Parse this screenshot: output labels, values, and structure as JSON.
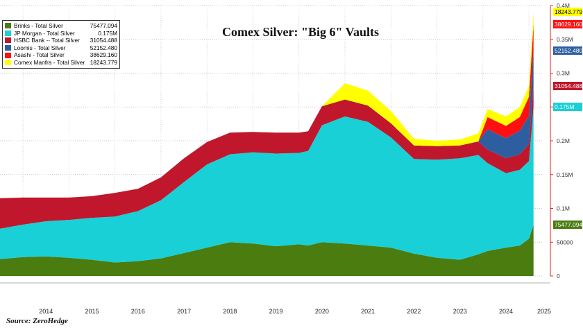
{
  "chart_data": {
    "type": "area",
    "stacked": true,
    "title": "Comex Silver: \"Big 6\" Vaults",
    "source": "Source: ZeroHedge",
    "xlim": [
      2013.5,
      2025.3
    ],
    "ylim": [
      0,
      400000
    ],
    "x_ticks": [
      2014,
      2015,
      2016,
      2017,
      2018,
      2019,
      2020,
      2021,
      2022,
      2023,
      2024,
      2025
    ],
    "y_ticks": [
      {
        "value": 0,
        "label": "0"
      },
      {
        "value": 50000,
        "label": "50000"
      },
      {
        "value": 100000,
        "label": "0.1M"
      },
      {
        "value": 150000,
        "label": "0.15M"
      },
      {
        "value": 200000,
        "label": "0.2M"
      },
      {
        "value": 250000,
        "label": "0.25M"
      },
      {
        "value": 300000,
        "label": "0.3M"
      },
      {
        "value": 350000,
        "label": "0.35M"
      },
      {
        "value": 400000,
        "label": "0.4M"
      }
    ],
    "x": [
      2013.5,
      2014.0,
      2014.5,
      2015.0,
      2015.5,
      2016.0,
      2016.5,
      2017.0,
      2017.5,
      2018.0,
      2018.5,
      2019.0,
      2019.5,
      2020.0,
      2020.2,
      2020.5,
      2021.0,
      2021.5,
      2022.0,
      2022.5,
      2023.0,
      2023.5,
      2023.9,
      2024.1,
      2024.5,
      2024.8,
      2025.0,
      2025.1
    ],
    "series": [
      {
        "name": "Brinks - Total Silver",
        "legend_value": "75477.094",
        "label": "75477.094",
        "color": "#4a7c10",
        "values": [
          25000,
          28000,
          29000,
          27000,
          24000,
          20000,
          22000,
          26000,
          34000,
          42000,
          50000,
          48000,
          44000,
          47000,
          45000,
          50000,
          48000,
          45000,
          42000,
          33000,
          27000,
          24000,
          32000,
          37000,
          42000,
          45000,
          55000,
          75477
        ]
      },
      {
        "name": "JP Morgan - Total Silver",
        "legend_value": "0.175M",
        "label": "0.175M",
        "color": "#19d0d6",
        "values": [
          45000,
          48000,
          52000,
          56000,
          62000,
          68000,
          74000,
          86000,
          105000,
          123000,
          130000,
          135000,
          137000,
          135000,
          140000,
          173000,
          188000,
          183000,
          163000,
          140000,
          145000,
          150000,
          147000,
          130000,
          110000,
          112000,
          115000,
          175000
        ]
      },
      {
        "name": "HSBC Bank -- Total Silver",
        "legend_value": "31054.488",
        "label": "31054.488",
        "color": "#c0172c",
        "values": [
          45000,
          40000,
          35000,
          33000,
          32000,
          35000,
          33000,
          34000,
          35000,
          33000,
          32000,
          30000,
          31000,
          30000,
          29000,
          28000,
          25000,
          24000,
          21000,
          20000,
          20000,
          19000,
          20000,
          20000,
          22000,
          23000,
          25000,
          31054
        ]
      },
      {
        "name": "Loomis - Total Silver",
        "legend_value": "52152.480",
        "label": "52152.480",
        "color": "#2d5fa0",
        "values": [
          0,
          0,
          0,
          0,
          0,
          0,
          0,
          0,
          0,
          0,
          0,
          0,
          0,
          0,
          0,
          0,
          0,
          0,
          0,
          0,
          0,
          0,
          0,
          30000,
          30000,
          35000,
          42000,
          52152
        ]
      },
      {
        "name": "Asashi - Total Silver",
        "legend_value": "38629.160",
        "label": "38629.160",
        "color": "#ff1010",
        "values": [
          0,
          0,
          0,
          0,
          0,
          0,
          0,
          0,
          0,
          0,
          0,
          0,
          0,
          0,
          0,
          0,
          0,
          0,
          0,
          0,
          0,
          0,
          0,
          18000,
          18000,
          20000,
          28000,
          38629
        ]
      },
      {
        "name": "Comex Manfra - Total Silver",
        "legend_value": "18243.779",
        "label": "18243.779",
        "color": "#ffff00",
        "values": [
          0,
          0,
          0,
          0,
          0,
          0,
          0,
          0,
          0,
          0,
          0,
          0,
          0,
          0,
          0,
          0,
          24000,
          22000,
          18000,
          10000,
          8000,
          9000,
          12000,
          12000,
          14000,
          15000,
          16000,
          18244
        ]
      }
    ]
  }
}
